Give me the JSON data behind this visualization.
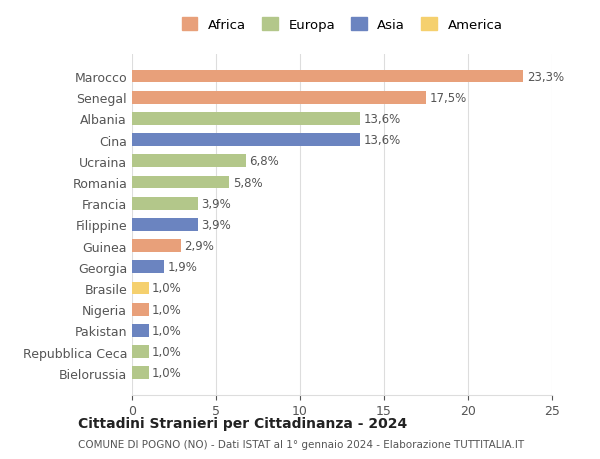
{
  "categories": [
    "Bielorussia",
    "Repubblica Ceca",
    "Pakistan",
    "Nigeria",
    "Brasile",
    "Georgia",
    "Guinea",
    "Filippine",
    "Francia",
    "Romania",
    "Ucraina",
    "Cina",
    "Albania",
    "Senegal",
    "Marocco"
  ],
  "values": [
    1.0,
    1.0,
    1.0,
    1.0,
    1.0,
    1.9,
    2.9,
    3.9,
    3.9,
    5.8,
    6.8,
    13.6,
    13.6,
    17.5,
    23.3
  ],
  "labels": [
    "1,0%",
    "1,0%",
    "1,0%",
    "1,0%",
    "1,0%",
    "1,9%",
    "2,9%",
    "3,9%",
    "3,9%",
    "5,8%",
    "6,8%",
    "13,6%",
    "13,6%",
    "17,5%",
    "23,3%"
  ],
  "colors": [
    "#b3c78a",
    "#b3c78a",
    "#6b84c0",
    "#e8a07a",
    "#f5d06e",
    "#6b84c0",
    "#e8a07a",
    "#6b84c0",
    "#b3c78a",
    "#b3c78a",
    "#b3c78a",
    "#6b84c0",
    "#b3c78a",
    "#e8a07a",
    "#e8a07a"
  ],
  "legend_items": [
    {
      "label": "Africa",
      "color": "#e8a07a"
    },
    {
      "label": "Europa",
      "color": "#b3c78a"
    },
    {
      "label": "Asia",
      "color": "#6b84c0"
    },
    {
      "label": "America",
      "color": "#f5d06e"
    }
  ],
  "title": "Cittadini Stranieri per Cittadinanza - 2024",
  "subtitle": "COMUNE DI POGNO (NO) - Dati ISTAT al 1° gennaio 2024 - Elaborazione TUTTITALIA.IT",
  "xlim": [
    0,
    25
  ],
  "xticks": [
    0,
    5,
    10,
    15,
    20,
    25
  ],
  "background_color": "#ffffff",
  "bar_height": 0.6
}
